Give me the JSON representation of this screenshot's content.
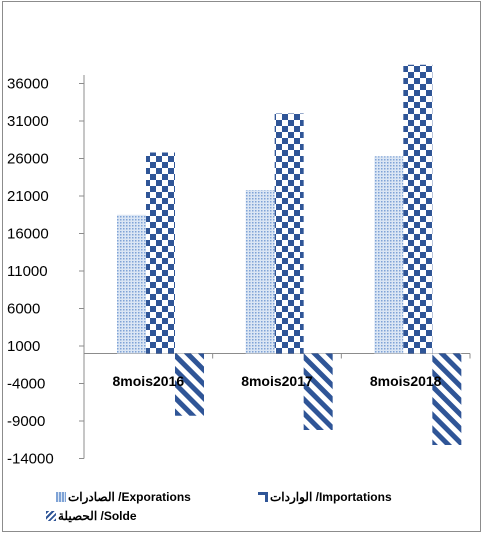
{
  "chart_data": {
    "type": "bar",
    "categories": [
      "8mois2016",
      "8mois2017",
      "8mois2018"
    ],
    "series": [
      {
        "name": "الصادرات  /Exporations",
        "values": [
          18500,
          21800,
          26300
        ],
        "color": "#a9c3e6",
        "pattern": "dots"
      },
      {
        "name": "الواردات /Importations",
        "values": [
          26800,
          32000,
          38500
        ],
        "color": "#2f5597",
        "pattern": "checker"
      },
      {
        "name": "الحصيلة /Solde",
        "values": [
          -8300,
          -10200,
          -12200
        ],
        "color": "#2f5597",
        "pattern": "diagonal"
      }
    ],
    "yticks": [
      36000,
      31000,
      26000,
      21000,
      16000,
      11000,
      6000,
      1000,
      -4000,
      -9000,
      -14000
    ],
    "ylim": [
      -14000,
      41000
    ],
    "grid": false,
    "legend_position": "bottom"
  }
}
